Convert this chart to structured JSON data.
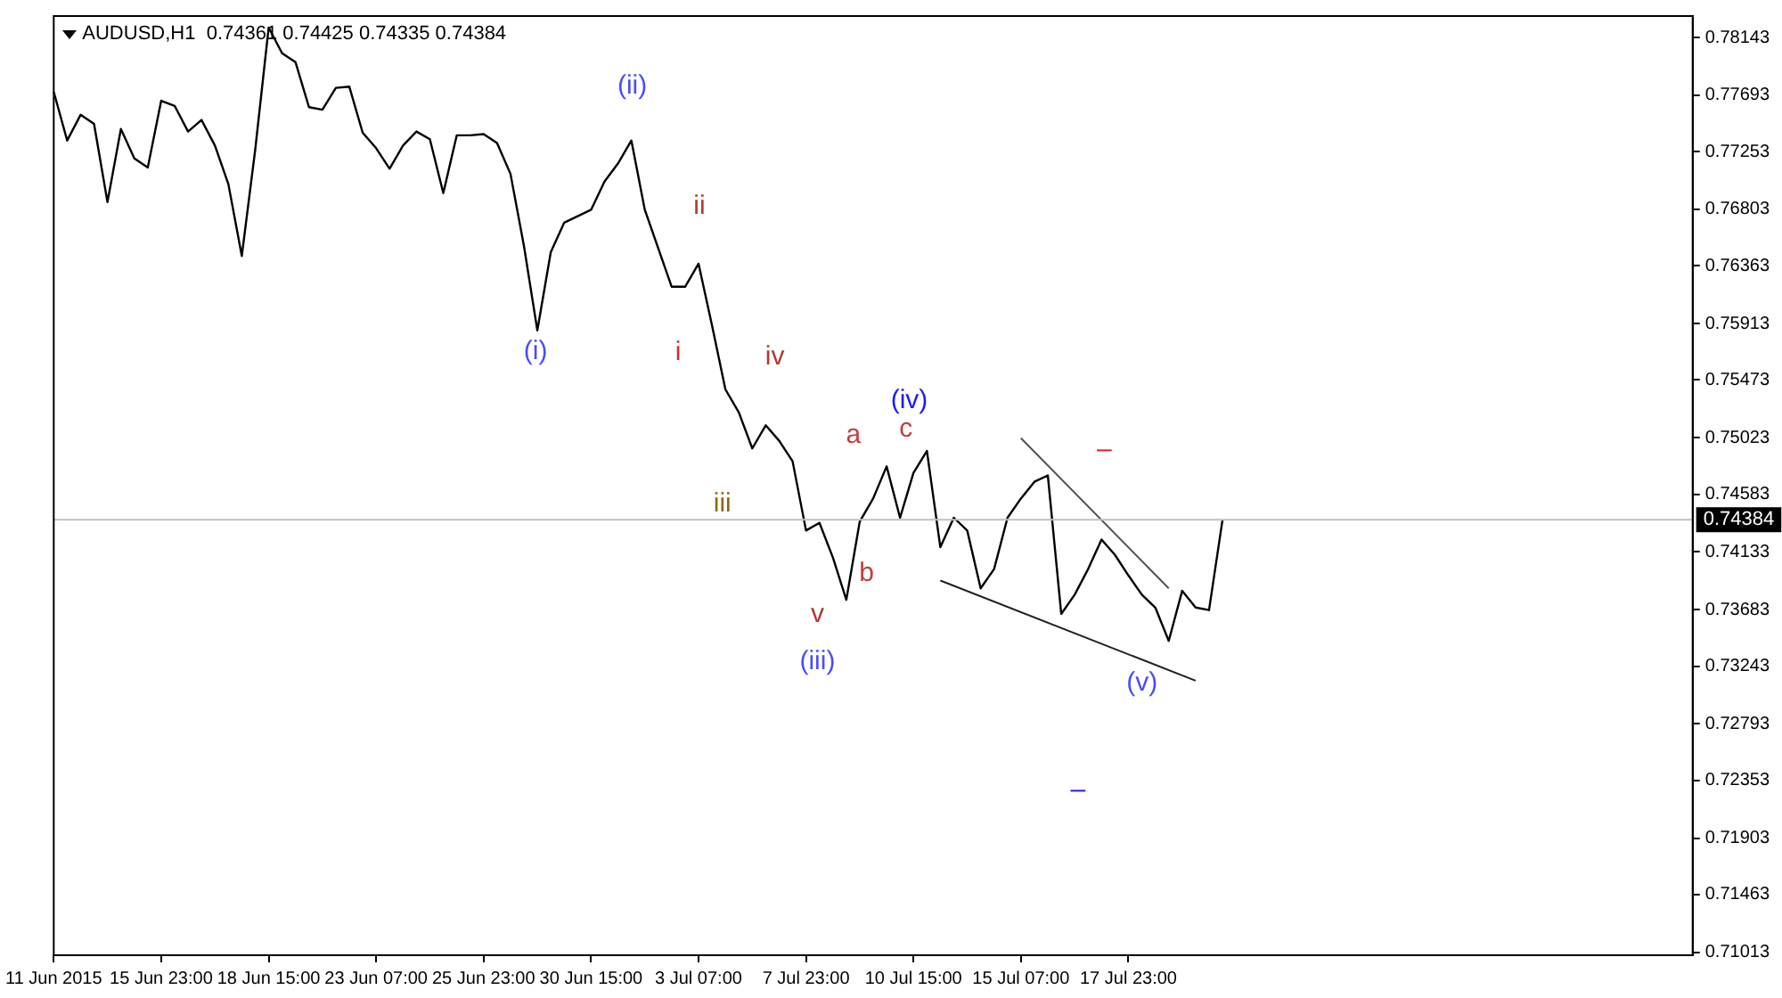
{
  "chart_data": {
    "type": "line",
    "title": "AUDUSD,H1  0.74361 0.74425 0.74335 0.74384",
    "categories": [
      "11 Jun 2015",
      null,
      null,
      null,
      null,
      null,
      null,
      null,
      "15 Jun 23:00",
      null,
      null,
      null,
      null,
      null,
      null,
      null,
      "18 Jun 15:00",
      null,
      null,
      null,
      null,
      null,
      null,
      null,
      "23 Jun 07:00",
      null,
      null,
      null,
      null,
      null,
      null,
      null,
      "25 Jun 23:00",
      null,
      null,
      null,
      null,
      null,
      null,
      null,
      "30 Jun 15:00",
      null,
      null,
      null,
      null,
      null,
      null,
      null,
      "3 Jul 07:00",
      null,
      null,
      null,
      null,
      null,
      null,
      null,
      "7 Jul 23:00",
      null,
      null,
      null,
      null,
      null,
      null,
      null,
      "10 Jul 15:00",
      null,
      null,
      null,
      null,
      null,
      null,
      null,
      "15 Jul 07:00",
      null,
      null,
      null,
      null,
      null,
      null,
      null,
      "17 Jul 23:00",
      null,
      null,
      null,
      null,
      null,
      null,
      null,
      null,
      null,
      null,
      null,
      null,
      null,
      null,
      null,
      null,
      null,
      null,
      null,
      null,
      null,
      null,
      null,
      null,
      null,
      null,
      null,
      null,
      null,
      null,
      null,
      null,
      null,
      null,
      null,
      null,
      null,
      null,
      null,
      null,
      null,
      null
    ],
    "ylim": [
      0.7099,
      0.7831
    ],
    "yticks": [
      0.78143,
      0.77693,
      0.77253,
      0.76803,
      0.76363,
      0.75913,
      0.75473,
      0.75023,
      0.74583,
      0.74133,
      0.73683,
      0.73243,
      0.72793,
      0.72353,
      0.71903,
      0.71463,
      0.71013
    ],
    "grid": false,
    "legend": false,
    "marker": "none",
    "line_style": "solid",
    "series": [
      {
        "color": "#000000",
        "values": [
          0.7772,
          0.7734,
          0.7754,
          0.7747,
          0.7686,
          0.7743,
          0.772,
          0.7713,
          0.7765,
          0.7761,
          0.7741,
          0.775,
          0.773,
          0.77,
          0.7644,
          0.7727,
          0.7822,
          0.7802,
          0.7795,
          0.776,
          0.7758,
          0.7775,
          0.7776,
          0.774,
          0.7728,
          0.7712,
          0.773,
          0.7741,
          0.7735,
          0.7693,
          0.7738,
          0.7738,
          0.7739,
          0.7732,
          0.7708,
          0.7652,
          0.7586,
          0.7647,
          0.767,
          0.7675,
          0.768,
          0.7702,
          0.7716,
          0.7734,
          0.768,
          0.765,
          0.762,
          0.762,
          0.7638,
          0.759,
          0.754,
          0.7522,
          0.7494,
          0.7512,
          0.75,
          0.7484,
          0.743,
          0.7436,
          0.7409,
          0.7376,
          0.7437,
          0.7455,
          0.748,
          0.744,
          0.7475,
          0.7492,
          0.7417,
          0.744,
          0.743,
          0.7385,
          0.74,
          0.744,
          0.7455,
          0.7468,
          0.7473,
          0.7365,
          0.738,
          0.74,
          0.7423,
          0.7411,
          0.7395,
          0.738,
          0.737,
          0.7344,
          0.7383,
          0.737,
          0.7368,
          0.7438,
          null,
          null,
          null,
          null,
          null,
          null,
          null,
          null,
          null,
          null,
          null,
          null,
          null,
          null,
          null,
          null,
          null,
          null,
          null,
          null,
          null,
          null,
          null,
          null,
          null,
          null,
          null,
          null,
          null,
          null,
          null,
          null,
          null,
          null,
          null
        ]
      },
      {
        "type": "line",
        "color": "#505050",
        "values": [
          null,
          null,
          null,
          null,
          null,
          null,
          null,
          null,
          null,
          null,
          null,
          null,
          null,
          null,
          null,
          null,
          null,
          null,
          null,
          null,
          null,
          null,
          null,
          null,
          null,
          null,
          null,
          null,
          null,
          null,
          null,
          null,
          null,
          null,
          null,
          null,
          null,
          null,
          null,
          null,
          null,
          null,
          null,
          null,
          null,
          null,
          null,
          null,
          null,
          null,
          null,
          null,
          null,
          null,
          null,
          null,
          null,
          null,
          null,
          null,
          null,
          null,
          null,
          null,
          null,
          null,
          null,
          null,
          null,
          null,
          null,
          null,
          0.7502,
          null,
          null,
          null,
          null,
          null,
          null,
          null,
          null,
          null,
          null,
          0.7385,
          null,
          null,
          null,
          null,
          null,
          null,
          null,
          null,
          null,
          null,
          null,
          null,
          null,
          null,
          null,
          null,
          null,
          null,
          null,
          null,
          null,
          null,
          null,
          null,
          null,
          null,
          null,
          null,
          null,
          null,
          null,
          null,
          null,
          null,
          null,
          null,
          null,
          null,
          null
        ]
      },
      {
        "type": "line",
        "color": "#202020",
        "values": [
          null,
          null,
          null,
          null,
          null,
          null,
          null,
          null,
          null,
          null,
          null,
          null,
          null,
          null,
          null,
          null,
          null,
          null,
          null,
          null,
          null,
          null,
          null,
          null,
          null,
          null,
          null,
          null,
          null,
          null,
          null,
          null,
          null,
          null,
          null,
          null,
          null,
          null,
          null,
          null,
          null,
          null,
          null,
          null,
          null,
          null,
          null,
          null,
          null,
          null,
          null,
          null,
          null,
          null,
          null,
          null,
          null,
          null,
          null,
          null,
          null,
          null,
          null,
          null,
          null,
          null,
          0.7391,
          null,
          null,
          null,
          null,
          null,
          null,
          null,
          null,
          null,
          null,
          null,
          null,
          null,
          null,
          null,
          null,
          null,
          null,
          0.7313,
          null,
          null,
          null,
          null,
          null,
          null,
          null,
          null,
          null,
          null,
          null,
          null,
          null,
          null,
          null,
          null,
          null,
          null,
          null,
          null,
          null,
          null,
          null,
          null,
          null,
          null,
          null,
          null,
          null,
          null,
          null,
          null,
          null,
          null,
          null,
          null,
          null
        ]
      }
    ],
    "ref_lines": [
      {
        "axis": "y",
        "value": 0.74384,
        "label": "0.74384",
        "color": "#c0c0c0"
      }
    ],
    "annotations": [
      "(i)",
      "(ii)",
      "ii",
      "i",
      "iv",
      "iii",
      "v",
      "(iii)",
      "a",
      "b",
      "c",
      "(iv)",
      "(v)",
      "–",
      "–"
    ]
  }
}
